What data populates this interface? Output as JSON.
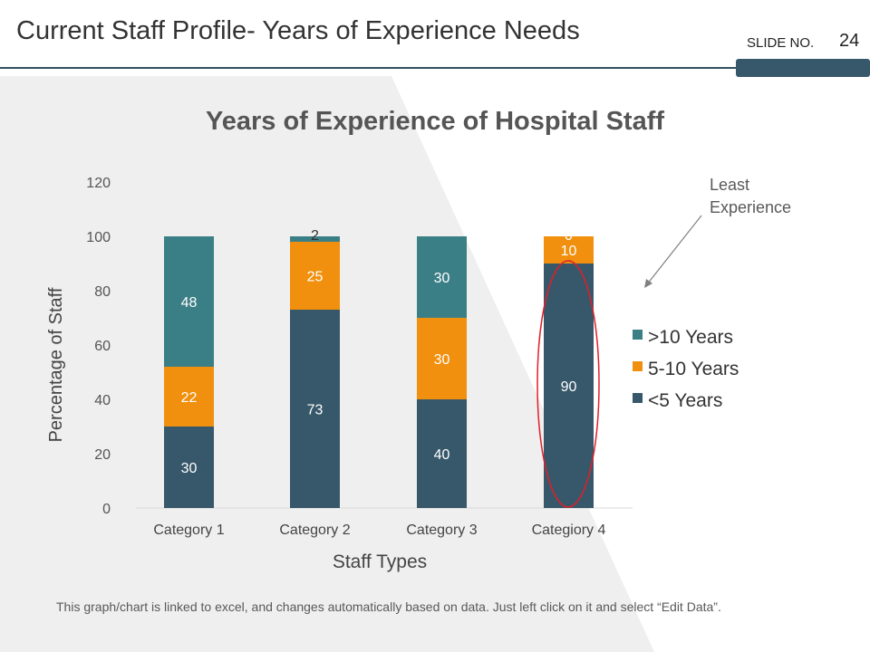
{
  "slide": {
    "title": "Current Staff Profile- Years of Experience Needs",
    "slide_no_label": "SLIDE NO.",
    "slide_no": "24",
    "footnote": "This graph/chart is linked to excel, and changes automatically based on data. Just left click on it and select “Edit Data”."
  },
  "annotation": {
    "line1": "Least",
    "line2": "Experience"
  },
  "colors": {
    "lt5": "#37586a",
    "mid": "#f0900e",
    "gt10": "#3b7f86",
    "highlight": "#e0202a",
    "accent": "#2f4f5e"
  },
  "chart_data": {
    "type": "bar",
    "stacked": true,
    "title": "Years of Experience of Hospital Staff",
    "xlabel": "Staff Types",
    "ylabel": "Percentage of Staff",
    "ylim": [
      0,
      120
    ],
    "yticks": [
      0,
      20,
      40,
      60,
      80,
      100,
      120
    ],
    "categories": [
      "Category 1",
      "Category 2",
      "Category 3",
      "Categiory 4"
    ],
    "series": [
      {
        "name": "<5 Years",
        "color_key": "lt5",
        "values": [
          30,
          73,
          40,
          90
        ]
      },
      {
        "name": "5-10 Years",
        "color_key": "mid",
        "values": [
          22,
          25,
          30,
          10
        ]
      },
      {
        "name": ">10 Years",
        "color_key": "gt10",
        "values": [
          48,
          2,
          30,
          0
        ]
      }
    ],
    "legend_order": [
      ">10 Years",
      "5-10 Years",
      "<5 Years"
    ],
    "legend_position": "right",
    "highlighted_category": "Categiory 4",
    "grid": false
  }
}
